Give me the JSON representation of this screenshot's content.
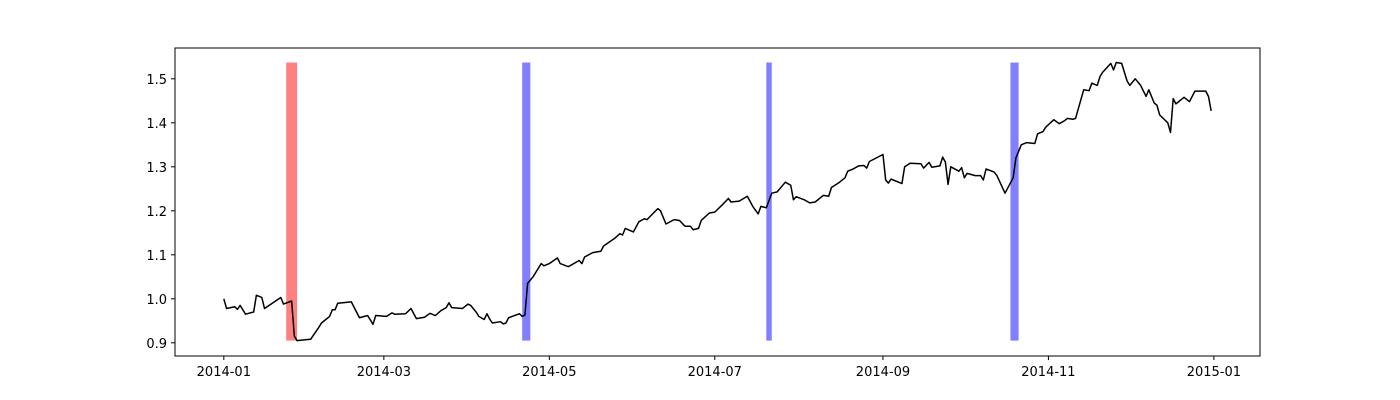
{
  "chart_data": {
    "type": "line",
    "x": [
      0,
      1,
      4,
      5,
      6,
      8,
      11,
      12,
      14,
      15,
      21,
      22,
      25,
      26,
      27,
      30,
      32,
      35,
      36,
      39,
      40,
      41,
      42,
      47,
      50,
      53,
      55,
      56,
      60,
      62,
      63,
      67,
      69,
      71,
      74,
      76,
      78,
      80,
      82,
      83,
      84,
      88,
      90,
      91,
      93,
      94,
      96,
      97,
      98,
      99,
      102,
      103,
      104,
      105,
      109,
      110,
      111,
      112,
      114,
      117,
      118,
      120,
      123,
      124,
      127,
      131,
      132,
      133,
      136,
      139,
      140,
      144,
      146,
      147,
      148,
      151,
      153,
      155,
      156,
      160,
      161,
      163,
      166,
      168,
      170,
      172,
      173,
      175,
      176,
      179,
      181,
      184,
      186,
      187,
      190,
      193,
      195,
      197,
      198,
      200,
      202,
      204,
      207,
      209,
      210,
      211,
      214,
      216,
      218,
      221,
      223,
      224,
      227,
      229,
      230,
      232,
      234,
      236,
      237,
      238,
      243,
      244,
      245,
      246,
      250,
      251,
      253,
      257,
      258,
      260,
      261,
      264,
      265,
      266,
      267,
      268,
      271,
      272,
      273,
      274,
      277,
      279,
      280,
      281,
      284,
      285,
      288,
      291,
      292,
      294,
      296,
      299,
      300,
      302,
      303,
      306,
      308,
      310,
      311,
      313,
      314,
      317,
      319,
      320,
      322,
      323,
      324,
      327,
      328,
      329,
      331,
      333,
      334,
      336,
      338,
      340,
      341,
      343,
      344,
      345,
      348,
      349,
      350,
      351,
      354,
      356,
      358,
      362,
      363,
      364
    ],
    "series": [
      {
        "color": "#000000",
        "values": [
          1.0,
          0.978,
          0.982,
          0.976,
          0.985,
          0.965,
          0.97,
          1.008,
          1.003,
          0.978,
          1.003,
          0.988,
          0.995,
          0.915,
          0.905,
          0.907,
          0.908,
          0.935,
          0.945,
          0.96,
          0.975,
          0.975,
          0.99,
          0.993,
          0.957,
          0.962,
          0.942,
          0.962,
          0.96,
          0.968,
          0.965,
          0.966,
          0.978,
          0.955,
          0.958,
          0.967,
          0.962,
          0.973,
          0.98,
          0.991,
          0.98,
          0.978,
          0.988,
          0.985,
          0.97,
          0.96,
          0.953,
          0.966,
          0.954,
          0.945,
          0.948,
          0.943,
          0.945,
          0.957,
          0.966,
          0.96,
          0.963,
          1.035,
          1.05,
          1.08,
          1.075,
          1.08,
          1.093,
          1.08,
          1.073,
          1.087,
          1.08,
          1.095,
          1.105,
          1.108,
          1.12,
          1.137,
          1.148,
          1.145,
          1.16,
          1.152,
          1.175,
          1.182,
          1.18,
          1.205,
          1.2,
          1.17,
          1.18,
          1.178,
          1.165,
          1.165,
          1.157,
          1.16,
          1.178,
          1.195,
          1.197,
          1.215,
          1.228,
          1.22,
          1.222,
          1.233,
          1.21,
          1.193,
          1.21,
          1.207,
          1.24,
          1.243,
          1.265,
          1.258,
          1.225,
          1.232,
          1.225,
          1.218,
          1.22,
          1.235,
          1.233,
          1.253,
          1.265,
          1.275,
          1.29,
          1.295,
          1.302,
          1.303,
          1.297,
          1.312,
          1.328,
          1.27,
          1.263,
          1.272,
          1.262,
          1.3,
          1.308,
          1.307,
          1.297,
          1.31,
          1.299,
          1.302,
          1.322,
          1.311,
          1.26,
          1.3,
          1.29,
          1.298,
          1.275,
          1.285,
          1.28,
          1.28,
          1.27,
          1.295,
          1.288,
          1.28,
          1.24,
          1.275,
          1.32,
          1.35,
          1.355,
          1.353,
          1.375,
          1.38,
          1.39,
          1.407,
          1.398,
          1.405,
          1.41,
          1.408,
          1.41,
          1.475,
          1.473,
          1.49,
          1.485,
          1.505,
          1.515,
          1.535,
          1.52,
          1.537,
          1.535,
          1.495,
          1.485,
          1.5,
          1.485,
          1.46,
          1.475,
          1.445,
          1.44,
          1.418,
          1.4,
          1.378,
          1.455,
          1.443,
          1.458,
          1.448,
          1.472,
          1.472,
          1.46,
          1.427
        ]
      }
    ],
    "spans": [
      {
        "start": 23,
        "end": 27,
        "color": "#ff8080"
      },
      {
        "start": 110,
        "end": 113,
        "color": "#8080ff"
      },
      {
        "start": 200,
        "end": 202,
        "color": "#8080ff"
      },
      {
        "start": 290,
        "end": 293,
        "color": "#8080ff"
      }
    ],
    "span_range": [
      0.905,
      1.537
    ],
    "xlim": [
      -18,
      382
    ],
    "ylim": [
      0.87,
      1.57
    ],
    "xticks": [
      {
        "value": 0,
        "label": "2014-01"
      },
      {
        "value": 59,
        "label": "2014-03"
      },
      {
        "value": 120,
        "label": "2014-05"
      },
      {
        "value": 181,
        "label": "2014-07"
      },
      {
        "value": 243,
        "label": "2014-09"
      },
      {
        "value": 304,
        "label": "2014-11"
      },
      {
        "value": 365,
        "label": "2015-01"
      }
    ],
    "yticks": [
      {
        "value": 0.9,
        "label": "0.9"
      },
      {
        "value": 1.0,
        "label": "1.0"
      },
      {
        "value": 1.1,
        "label": "1.1"
      },
      {
        "value": 1.2,
        "label": "1.2"
      },
      {
        "value": 1.3,
        "label": "1.3"
      },
      {
        "value": 1.4,
        "label": "1.4"
      },
      {
        "value": 1.5,
        "label": "1.5"
      }
    ]
  }
}
